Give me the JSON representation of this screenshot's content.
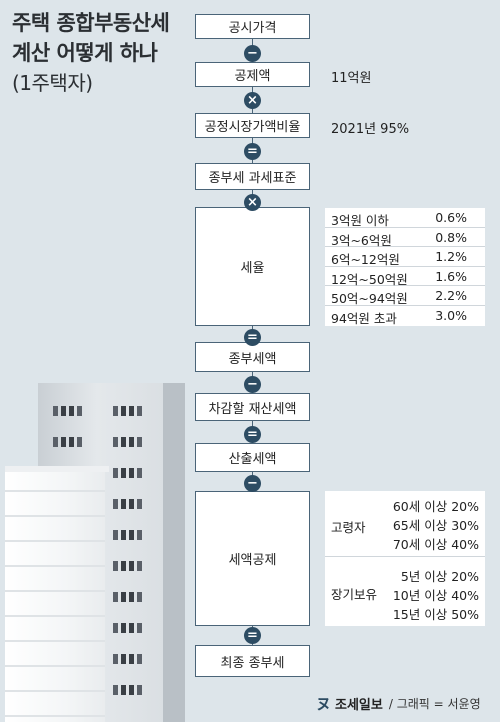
{
  "title": {
    "line1": "주택 종합부동산세",
    "line2": "계산 어떻게 하나",
    "line3": "(1주택자)"
  },
  "flow": {
    "step1": "공시가격",
    "step2": "공제액",
    "step3": "공정시장가액비율",
    "step4": "종부세 과세표준",
    "step5": "세율",
    "step6": "종부세액",
    "step7": "차감할 재산세액",
    "step8": "산출세액",
    "step9": "세액공제",
    "step10": "최종 종부세"
  },
  "operators": {
    "op1": "−",
    "op2": "×",
    "op3": "=",
    "op4": "×",
    "op5": "=",
    "op6": "−",
    "op7": "=",
    "op8": "−",
    "op9": "="
  },
  "notes": {
    "deduction": "11억원",
    "ratio": "2021년 95%"
  },
  "tax_rates": [
    {
      "bracket": "3억원 이하",
      "rate": "0.6%"
    },
    {
      "bracket": "3억~6억원",
      "rate": "0.8%"
    },
    {
      "bracket": "6억~12억원",
      "rate": "1.2%"
    },
    {
      "bracket": "12억~50억원",
      "rate": "1.6%"
    },
    {
      "bracket": "50억~94억원",
      "rate": "2.2%"
    },
    {
      "bracket": "94억원 초과",
      "rate": "3.0%"
    }
  ],
  "credits": {
    "elderly_label": "고령자",
    "elderly_items": [
      "60세 이상 20%",
      "65세 이상 30%",
      "70세 이상 40%"
    ],
    "longterm_label": "장기보유",
    "longterm_items": [
      "5년 이상 20%",
      "10년 이상 40%",
      "15년 이상 50%"
    ]
  },
  "footer": {
    "logo": "조세일보",
    "credit": "/ 그래픽 = 서윤영"
  },
  "colors": {
    "background": "#dde5ea",
    "operator": "#2d4c63",
    "box_border": "#4a6478"
  }
}
